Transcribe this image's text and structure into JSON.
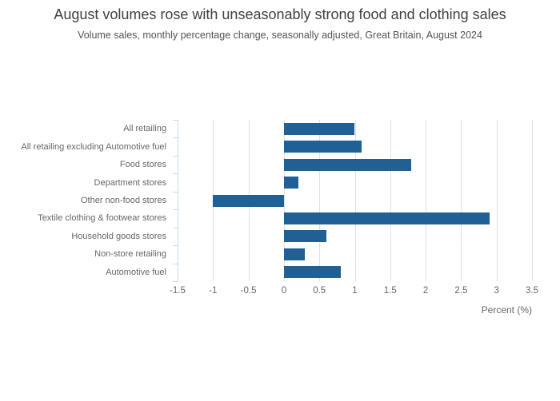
{
  "header": {
    "title": "August volumes rose with unseasonably strong food and clothing sales",
    "subtitle": "Volume sales, monthly percentage change, seasonally adjusted, Great Britain, August 2024"
  },
  "chart_data": {
    "type": "bar",
    "orientation": "horizontal",
    "title": "August volumes rose with unseasonably strong food and clothing sales",
    "subtitle": "Volume sales, monthly percentage change, seasonally adjusted, Great Britain, August 2024",
    "categories": [
      "All retailing",
      "All retailing excluding Automotive fuel",
      "Food stores",
      "Department stores",
      "Other non-food stores",
      "Textile clothing & footwear stores",
      "Household goods stores",
      "Non-store retailing",
      "Automotive fuel"
    ],
    "values": [
      1.0,
      1.1,
      1.8,
      0.2,
      -1.0,
      2.9,
      0.6,
      0.3,
      0.8
    ],
    "xlabel": "Percent (%)",
    "ylabel": "",
    "xlim": [
      -1.5,
      3.5
    ],
    "xticks": [
      -1.5,
      -1,
      -0.5,
      0,
      0.5,
      1,
      1.5,
      2,
      2.5,
      3,
      3.5
    ],
    "xtick_labels": [
      "-1.5",
      "-1",
      "-0.5",
      "0",
      "0.5",
      "1",
      "1.5",
      "2",
      "2.5",
      "3",
      "3.5"
    ],
    "grid": true,
    "legend": false,
    "colors": {
      "bar": "#206095",
      "gridline": "#e0e0e0",
      "category_axis": "#ccd6eb",
      "axis_labels": "#666666",
      "title_text": "#414042",
      "subtitle_text": "#545454"
    }
  }
}
